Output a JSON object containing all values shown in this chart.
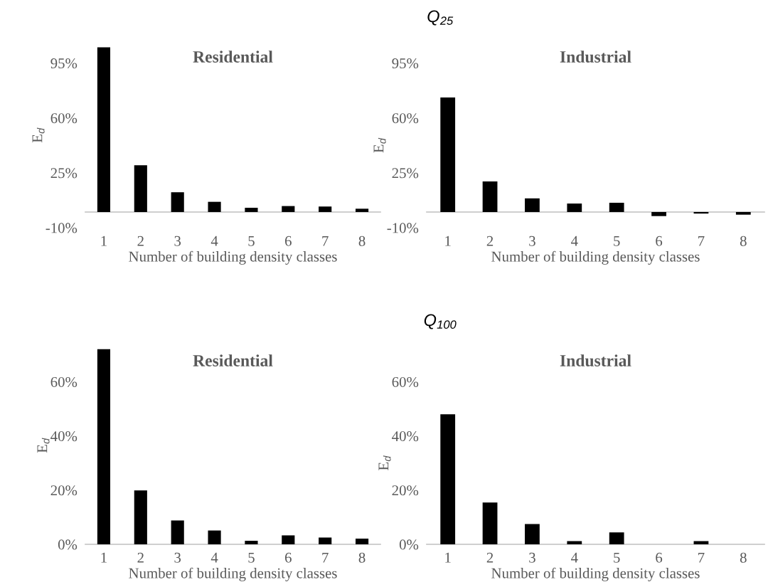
{
  "chart_data": [
    {
      "type": "bar",
      "title": "Residential",
      "annotations": [
        "Q$_{25}$"
      ],
      "xlabel": "Number of building density classes",
      "ylabel": "E$_{d}$",
      "categories": [
        "1",
        "2",
        "3",
        "4",
        "5",
        "6",
        "7",
        "8"
      ],
      "color": "#000000",
      "values": [
        105,
        29.8,
        12.6,
        6.5,
        2.7,
        3.8,
        3.5,
        2.1
      ],
      "ylim": [
        -10,
        108
      ],
      "yticks": [
        {
          "value": -10,
          "label": "-10%"
        },
        {
          "value": 25,
          "label": "25%"
        },
        {
          "value": 60,
          "label": "60%"
        },
        {
          "value": 95,
          "label": "95%"
        }
      ],
      "grid": false
    },
    {
      "type": "bar",
      "title": "Industrial",
      "xlabel": "Number of building density classes",
      "ylabel": "E$_{d}$",
      "categories": [
        "1",
        "2",
        "3",
        "4",
        "5",
        "6",
        "7",
        "8"
      ],
      "color": "#000000",
      "values": [
        73,
        19.5,
        8.7,
        5.4,
        5.9,
        -2.6,
        -1.0,
        -1.7
      ],
      "ylim": [
        -10,
        95
      ],
      "yticks": [
        {
          "value": -10,
          "label": "-10%"
        },
        {
          "value": 25,
          "label": "25%"
        },
        {
          "value": 60,
          "label": "60%"
        },
        {
          "value": 95,
          "label": "95%"
        }
      ],
      "grid": false
    },
    {
      "type": "bar",
      "title": "Residential",
      "annotations": [
        "Q$_{100}$"
      ],
      "xlabel": "Number of building density classes",
      "ylabel": "E$_{d}$",
      "categories": [
        "1",
        "2",
        "3",
        "4",
        "5",
        "6",
        "7",
        "8"
      ],
      "color": "#000000",
      "values": [
        72,
        19.9,
        8.8,
        5.1,
        1.3,
        3.3,
        2.5,
        2.1
      ],
      "ylim": [
        0,
        73
      ],
      "yticks": [
        {
          "value": 0,
          "label": "0%"
        },
        {
          "value": 20,
          "label": "20%"
        },
        {
          "value": 40,
          "label": "40%"
        },
        {
          "value": 60,
          "label": "60%"
        }
      ],
      "grid": false
    },
    {
      "type": "bar",
      "title": "Industrial",
      "xlabel": "Number of building density classes",
      "ylabel": "E$_{d}$",
      "categories": [
        "1",
        "2",
        "3",
        "4",
        "5",
        "6",
        "7",
        "8"
      ],
      "color": "#000000",
      "values": [
        48,
        15.4,
        7.5,
        1.2,
        4.4,
        0,
        1.2,
        0
      ],
      "ylim": [
        0,
        60
      ],
      "yticks": [
        {
          "value": 0,
          "label": "0%"
        },
        {
          "value": 20,
          "label": "20%"
        },
        {
          "value": 40,
          "label": "40%"
        },
        {
          "value": 60,
          "label": "60%"
        }
      ],
      "grid": false
    }
  ]
}
